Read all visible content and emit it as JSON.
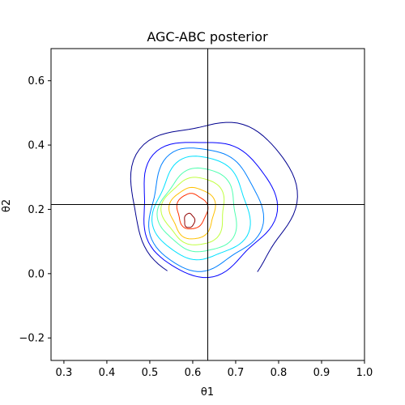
{
  "chart_data": {
    "type": "contour",
    "title": "AGC-ABC posterior",
    "xlabel": "θ1",
    "ylabel": "θ2",
    "xlim": [
      0.27,
      1.0
    ],
    "ylim": [
      -0.27,
      0.7
    ],
    "xticks": [
      0.3,
      0.4,
      0.5,
      0.6,
      0.7,
      0.8,
      0.9,
      1.0
    ],
    "xtick_labels": [
      "0.3",
      "0.4",
      "0.5",
      "0.6",
      "0.7",
      "0.8",
      "0.9",
      "1.0"
    ],
    "yticks": [
      -0.2,
      0.0,
      0.2,
      0.4,
      0.6
    ],
    "ytick_labels": [
      "−0.2",
      "0.0",
      "0.2",
      "0.4",
      "0.6"
    ],
    "reference_lines": {
      "x": 0.635,
      "y": 0.215
    },
    "colormap": "jet",
    "grid": false,
    "legend": "none",
    "contours": [
      {
        "level": 1,
        "color": "#00008f",
        "cx": 0.645,
        "cy": 0.22,
        "rx": 0.19,
        "ry": 0.26,
        "open_bottom": true
      },
      {
        "level": 2,
        "color": "#0000ff",
        "cx": 0.63,
        "cy": 0.21,
        "rx": 0.155,
        "ry": 0.21,
        "open_bottom": false
      },
      {
        "level": 3,
        "color": "#0080ff",
        "cx": 0.625,
        "cy": 0.2,
        "rx": 0.13,
        "ry": 0.19,
        "open_bottom": false
      },
      {
        "level": 4,
        "color": "#00e0ff",
        "cx": 0.62,
        "cy": 0.2,
        "rx": 0.11,
        "ry": 0.16,
        "open_bottom": false
      },
      {
        "level": 5,
        "color": "#50ffb0",
        "cx": 0.615,
        "cy": 0.195,
        "rx": 0.09,
        "ry": 0.13,
        "open_bottom": false
      },
      {
        "level": 6,
        "color": "#c0ff40",
        "cx": 0.605,
        "cy": 0.195,
        "rx": 0.072,
        "ry": 0.105,
        "open_bottom": false
      },
      {
        "level": 7,
        "color": "#ffc000",
        "cx": 0.6,
        "cy": 0.19,
        "rx": 0.052,
        "ry": 0.08,
        "open_bottom": false
      },
      {
        "level": 8,
        "color": "#ff3000",
        "cx": 0.598,
        "cy": 0.195,
        "rx": 0.035,
        "ry": 0.055,
        "open_bottom": false
      },
      {
        "level": 9,
        "color": "#900000",
        "cx": 0.592,
        "cy": 0.165,
        "rx": 0.012,
        "ry": 0.022,
        "open_bottom": false
      }
    ]
  }
}
